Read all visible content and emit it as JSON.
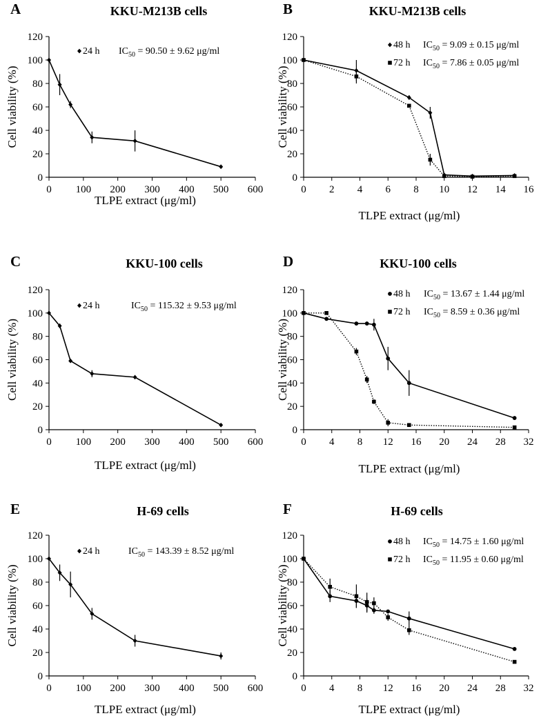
{
  "figure": {
    "panels": [
      {
        "id": "A",
        "letter": "A",
        "chart_data": {
          "type": "line",
          "title": "KKU-M213B cells",
          "xlabel": "TLPE extract (μg/ml)",
          "ylabel": "Cell viability (%)",
          "xlim": [
            0,
            600
          ],
          "ylim": [
            0,
            120
          ],
          "xticks": [
            0,
            100,
            200,
            300,
            400,
            500,
            600
          ],
          "yticks": [
            0,
            20,
            40,
            60,
            80,
            100,
            120
          ],
          "series": [
            {
              "name": "24 h",
              "ic50_text": "IC50 = 90.50 ± 9.62 μg/ml",
              "style": "solid",
              "marker": "diamond",
              "x": [
                0,
                31.25,
                62.5,
                125,
                250,
                500
              ],
              "y": [
                100,
                79,
                62,
                34,
                31,
                9
              ],
              "err": [
                0,
                9,
                3,
                5,
                9,
                0.5
              ]
            }
          ]
        }
      },
      {
        "id": "B",
        "letter": "B",
        "chart_data": {
          "type": "line",
          "title": "KKU-M213B cells",
          "xlabel": "TLPE extract (μg/ml)",
          "ylabel": "Cell viability (%)",
          "xlim": [
            0,
            16
          ],
          "ylim": [
            0,
            120
          ],
          "xticks": [
            0,
            2,
            4,
            6,
            8,
            10,
            12,
            14,
            16
          ],
          "yticks": [
            0,
            20,
            40,
            60,
            80,
            100,
            120
          ],
          "series": [
            {
              "name": "48 h",
              "ic50_text": "IC50 = 9.09 ± 0.15 μg/ml",
              "style": "solid",
              "marker": "diamond",
              "x": [
                0,
                3.75,
                7.5,
                9,
                10,
                12,
                15
              ],
              "y": [
                100,
                91,
                68,
                55,
                2,
                1,
                1.5
              ],
              "err": [
                0,
                9,
                2,
                5,
                1,
                0.5,
                0.5
              ]
            },
            {
              "name": "72 h",
              "ic50_text": "IC50 = 7.86 ± 0.05 μg/ml",
              "style": "dotted",
              "marker": "square",
              "x": [
                0,
                3.75,
                7.5,
                9,
                10,
                12,
                15
              ],
              "y": [
                100,
                86,
                61,
                15,
                1,
                0.5,
                1
              ],
              "err": [
                0,
                6,
                1.5,
                5,
                0.5,
                0.5,
                0.5
              ]
            }
          ]
        }
      },
      {
        "id": "C",
        "letter": "C",
        "chart_data": {
          "type": "line",
          "title": "KKU-100 cells",
          "xlabel": "TLPE extract (μg/ml)",
          "ylabel": "Cell viability (%)",
          "xlim": [
            0,
            600
          ],
          "ylim": [
            0,
            120
          ],
          "xticks": [
            0,
            100,
            200,
            300,
            400,
            500,
            600
          ],
          "yticks": [
            0,
            20,
            40,
            60,
            80,
            100,
            120
          ],
          "series": [
            {
              "name": "24 h",
              "ic50_text": "IC50 = 115.32 ± 9.53 μg/ml",
              "style": "solid",
              "marker": "diamond",
              "x": [
                0,
                31.25,
                62.5,
                125,
                250,
                500
              ],
              "y": [
                100,
                89,
                59,
                48,
                45,
                4
              ],
              "err": [
                0,
                2,
                1,
                3,
                1,
                0.5
              ]
            }
          ]
        }
      },
      {
        "id": "D",
        "letter": "D",
        "chart_data": {
          "type": "line",
          "title": "KKU-100 cells",
          "xlabel": "TLPE extract (μg/ml)",
          "ylabel": "Cell viability (%)",
          "xlim": [
            0,
            32
          ],
          "ylim": [
            0,
            120
          ],
          "xticks": [
            0,
            4,
            8,
            12,
            16,
            20,
            24,
            28,
            32
          ],
          "yticks": [
            0,
            20,
            40,
            60,
            80,
            100,
            120
          ],
          "series": [
            {
              "name": "48 h",
              "ic50_text": "IC50 = 13.67 ± 1.44 μg/ml",
              "style": "solid",
              "marker": "circle",
              "x": [
                0,
                3.25,
                7.5,
                9,
                10,
                12,
                15,
                30
              ],
              "y": [
                100,
                95,
                91,
                91,
                90,
                61,
                40,
                10
              ],
              "err": [
                0,
                0.5,
                0.5,
                1,
                5,
                10,
                11,
                0.5
              ]
            },
            {
              "name": "72 h",
              "ic50_text": "IC50 = 8.59 ± 0.36 μg/ml",
              "style": "dotted",
              "marker": "square",
              "x": [
                0,
                3.25,
                7.5,
                9,
                10,
                12,
                15,
                30
              ],
              "y": [
                100,
                100,
                67,
                43,
                24,
                6,
                4,
                2
              ],
              "err": [
                0,
                0.5,
                3,
                3,
                2,
                3,
                0.5,
                0.5
              ]
            }
          ]
        }
      },
      {
        "id": "E",
        "letter": "E",
        "chart_data": {
          "type": "line",
          "title": "H-69 cells",
          "xlabel": "TLPE extract (μg/ml)",
          "ylabel": "Cell viability (%)",
          "xlim": [
            0,
            600
          ],
          "ylim": [
            0,
            120
          ],
          "xticks": [
            0,
            100,
            200,
            300,
            400,
            500,
            600
          ],
          "yticks": [
            0,
            20,
            40,
            60,
            80,
            100,
            120
          ],
          "series": [
            {
              "name": "24 h",
              "ic50_text": "IC50 = 143.39 ± 8.52 μg/ml",
              "style": "solid",
              "marker": "diamond",
              "x": [
                0,
                31.25,
                62.5,
                125,
                250,
                500
              ],
              "y": [
                100,
                88,
                78,
                53,
                30,
                17
              ],
              "err": [
                0,
                7,
                11,
                5,
                5,
                3
              ]
            }
          ]
        }
      },
      {
        "id": "F",
        "letter": "F",
        "chart_data": {
          "type": "line",
          "title": "H-69 cells",
          "xlabel": "TLPE extract (μg/ml)",
          "ylabel": "Cell viability (%)",
          "xlim": [
            0,
            32
          ],
          "ylim": [
            0,
            120
          ],
          "xticks": [
            0,
            4,
            8,
            12,
            16,
            20,
            24,
            28,
            32
          ],
          "yticks": [
            0,
            20,
            40,
            60,
            80,
            100,
            120
          ],
          "series": [
            {
              "name": "48 h",
              "ic50_text": "IC50 = 14.75 ± 1.60 μg/ml",
              "style": "solid",
              "marker": "circle",
              "x": [
                0,
                3.75,
                7.5,
                9,
                10,
                12,
                15,
                30
              ],
              "y": [
                100,
                68,
                64,
                60,
                56,
                55,
                49,
                23
              ],
              "err": [
                0,
                5,
                6,
                6,
                3,
                1,
                6,
                0.5
              ]
            },
            {
              "name": "72 h",
              "ic50_text": "IC50 = 11.95 ± 0.60 μg/ml",
              "style": "dotted",
              "marker": "square",
              "x": [
                0,
                3.75,
                7.5,
                9,
                10,
                12,
                15,
                30
              ],
              "y": [
                100,
                76,
                68,
                63,
                62,
                50,
                39,
                12
              ],
              "err": [
                0,
                7,
                10,
                8,
                5,
                3,
                4,
                0.5
              ]
            }
          ]
        }
      }
    ]
  }
}
